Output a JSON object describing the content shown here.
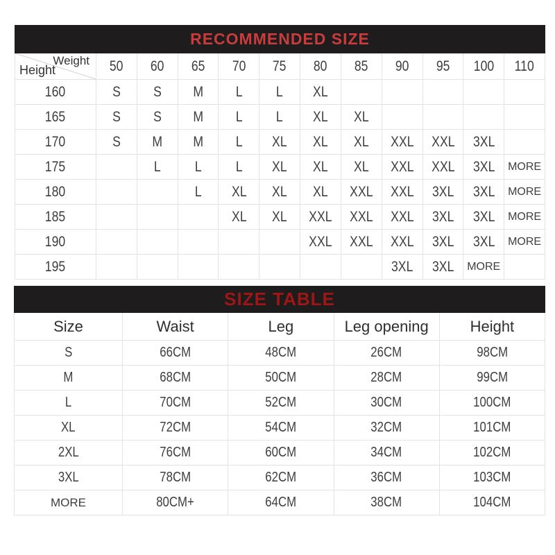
{
  "recommended": {
    "title": "RECOMMENDED SIZE",
    "corner": {
      "top": "Weight",
      "bottom": "Height"
    },
    "weights": [
      "50",
      "60",
      "65",
      "70",
      "75",
      "80",
      "85",
      "90",
      "95",
      "100",
      "110"
    ],
    "rows": [
      {
        "height": "160",
        "cells": [
          "S",
          "S",
          "M",
          "L",
          "L",
          "XL",
          "",
          "",
          "",
          "",
          ""
        ]
      },
      {
        "height": "165",
        "cells": [
          "S",
          "S",
          "M",
          "L",
          "L",
          "XL",
          "XL",
          "",
          "",
          "",
          ""
        ]
      },
      {
        "height": "170",
        "cells": [
          "S",
          "M",
          "M",
          "L",
          "XL",
          "XL",
          "XL",
          "XXL",
          "XXL",
          "3XL",
          ""
        ]
      },
      {
        "height": "175",
        "cells": [
          "",
          "L",
          "L",
          "L",
          "XL",
          "XL",
          "XL",
          "XXL",
          "XXL",
          "3XL",
          "MORE"
        ]
      },
      {
        "height": "180",
        "cells": [
          "",
          "",
          "L",
          "XL",
          "XL",
          "XL",
          "XXL",
          "XXL",
          "3XL",
          "3XL",
          "MORE"
        ]
      },
      {
        "height": "185",
        "cells": [
          "",
          "",
          "",
          "XL",
          "XL",
          "XXL",
          "XXL",
          "XXL",
          "3XL",
          "3XL",
          "MORE"
        ]
      },
      {
        "height": "190",
        "cells": [
          "",
          "",
          "",
          "",
          "",
          "XXL",
          "XXL",
          "XXL",
          "3XL",
          "3XL",
          "MORE"
        ]
      },
      {
        "height": "195",
        "cells": [
          "",
          "",
          "",
          "",
          "",
          "",
          "",
          "3XL",
          "3XL",
          "MORE",
          ""
        ]
      }
    ]
  },
  "size_table": {
    "title": "SIZE TABLE",
    "headers": [
      "Size",
      "Waist",
      "Leg",
      "Leg opening",
      "Height"
    ],
    "rows": [
      [
        "S",
        "66CM",
        "48CM",
        "26CM",
        "98CM"
      ],
      [
        "M",
        "68CM",
        "50CM",
        "28CM",
        "99CM"
      ],
      [
        "L",
        "70CM",
        "52CM",
        "30CM",
        "100CM"
      ],
      [
        "XL",
        "72CM",
        "54CM",
        "32CM",
        "101CM"
      ],
      [
        "2XL",
        "76CM",
        "60CM",
        "34CM",
        "102CM"
      ],
      [
        "3XL",
        "78CM",
        "62CM",
        "36CM",
        "103CM"
      ],
      [
        "MORE",
        "80CM+",
        "64CM",
        "38CM",
        "104CM"
      ]
    ]
  },
  "colors": {
    "header_bar_bg": "#1e1c1c",
    "recommended_title_red": "#c83c3c",
    "size_table_title_red": "#9e1616",
    "cell_border": "#e3e3e3",
    "cell_text": "#3e3e3e"
  }
}
